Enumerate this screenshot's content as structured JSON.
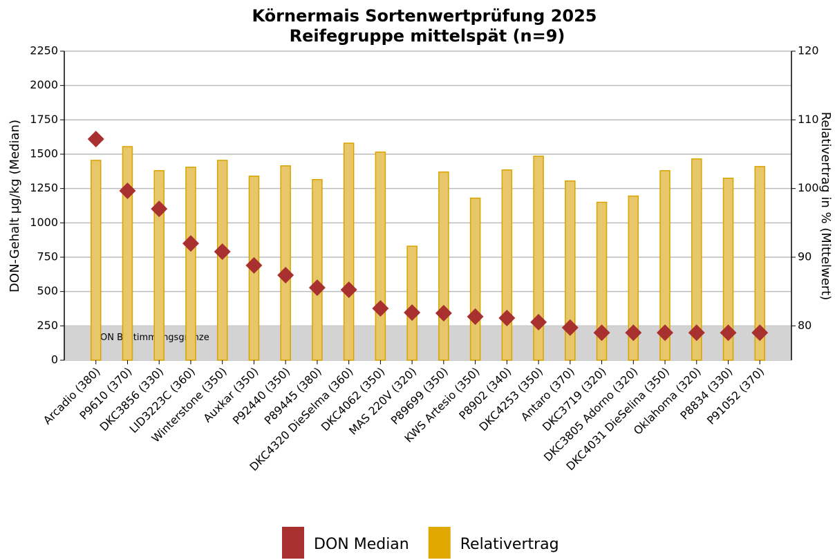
{
  "chart_data": {
    "type": "bar",
    "title": "Körnermais Sortenwertprüfung 2025",
    "subtitle": "Reifegruppe mittelspät (n=9)",
    "y_label": "DON-Gehalt µg/kg (Median)",
    "y2_label": "Relativertrag in % (Mittelwert)",
    "categories": [
      "Arcadio (380)",
      "P9610 (370)",
      "DKC3856 (330)",
      "LID3223C (360)",
      "Winterstone (350)",
      "Auxkar (350)",
      "P92440 (350)",
      "P89445 (380)",
      "DKC4320 DieSelma (360)",
      "DKC4062 (350)",
      "MAS 220V (320)",
      "P89699 (350)",
      "KWS Artesio (350)",
      "P8902 (340)",
      "DKC4253 (350)",
      "Antaro (370)",
      "DKC3719 (320)",
      "DKC3805 Adorno (320)",
      "DKC4031 DieSelina (350)",
      "Oklahoma (320)",
      "P8834 (330)",
      "P91052 (370)"
    ],
    "series": [
      {
        "name": "DON Median",
        "type": "scatter",
        "color": "#a8302e",
        "axis": "y",
        "values": [
          1610,
          1233,
          1102,
          850,
          790,
          690,
          619,
          528,
          513,
          377,
          347,
          342,
          317,
          307,
          277,
          237,
          200,
          200,
          200,
          200,
          200,
          200
        ]
      },
      {
        "name": "Relativertrag",
        "type": "bar",
        "color": "#e8c66a",
        "stroke": "#d9a300",
        "legend_color": "#e0a800",
        "axis": "y2",
        "values": [
          104.1,
          106.1,
          102.6,
          103.1,
          104.1,
          101.8,
          103.3,
          101.3,
          106.6,
          105.3,
          91.6,
          102.4,
          98.6,
          102.7,
          104.7,
          101.1,
          98.0,
          98.9,
          102.6,
          104.3,
          101.5,
          103.2
        ]
      }
    ],
    "ylim": [
      0,
      2250
    ],
    "yticks": [
      0,
      250,
      500,
      750,
      1000,
      1250,
      1500,
      1750,
      2000,
      2250
    ],
    "y2lim": [
      75,
      120
    ],
    "y2ticks": [
      80,
      90,
      100,
      110,
      120
    ],
    "grid": true,
    "threshold": {
      "value": 250,
      "label": "DON Bestimmungsgrenze",
      "color": "#d3d3d3"
    },
    "legend": "bottom"
  }
}
